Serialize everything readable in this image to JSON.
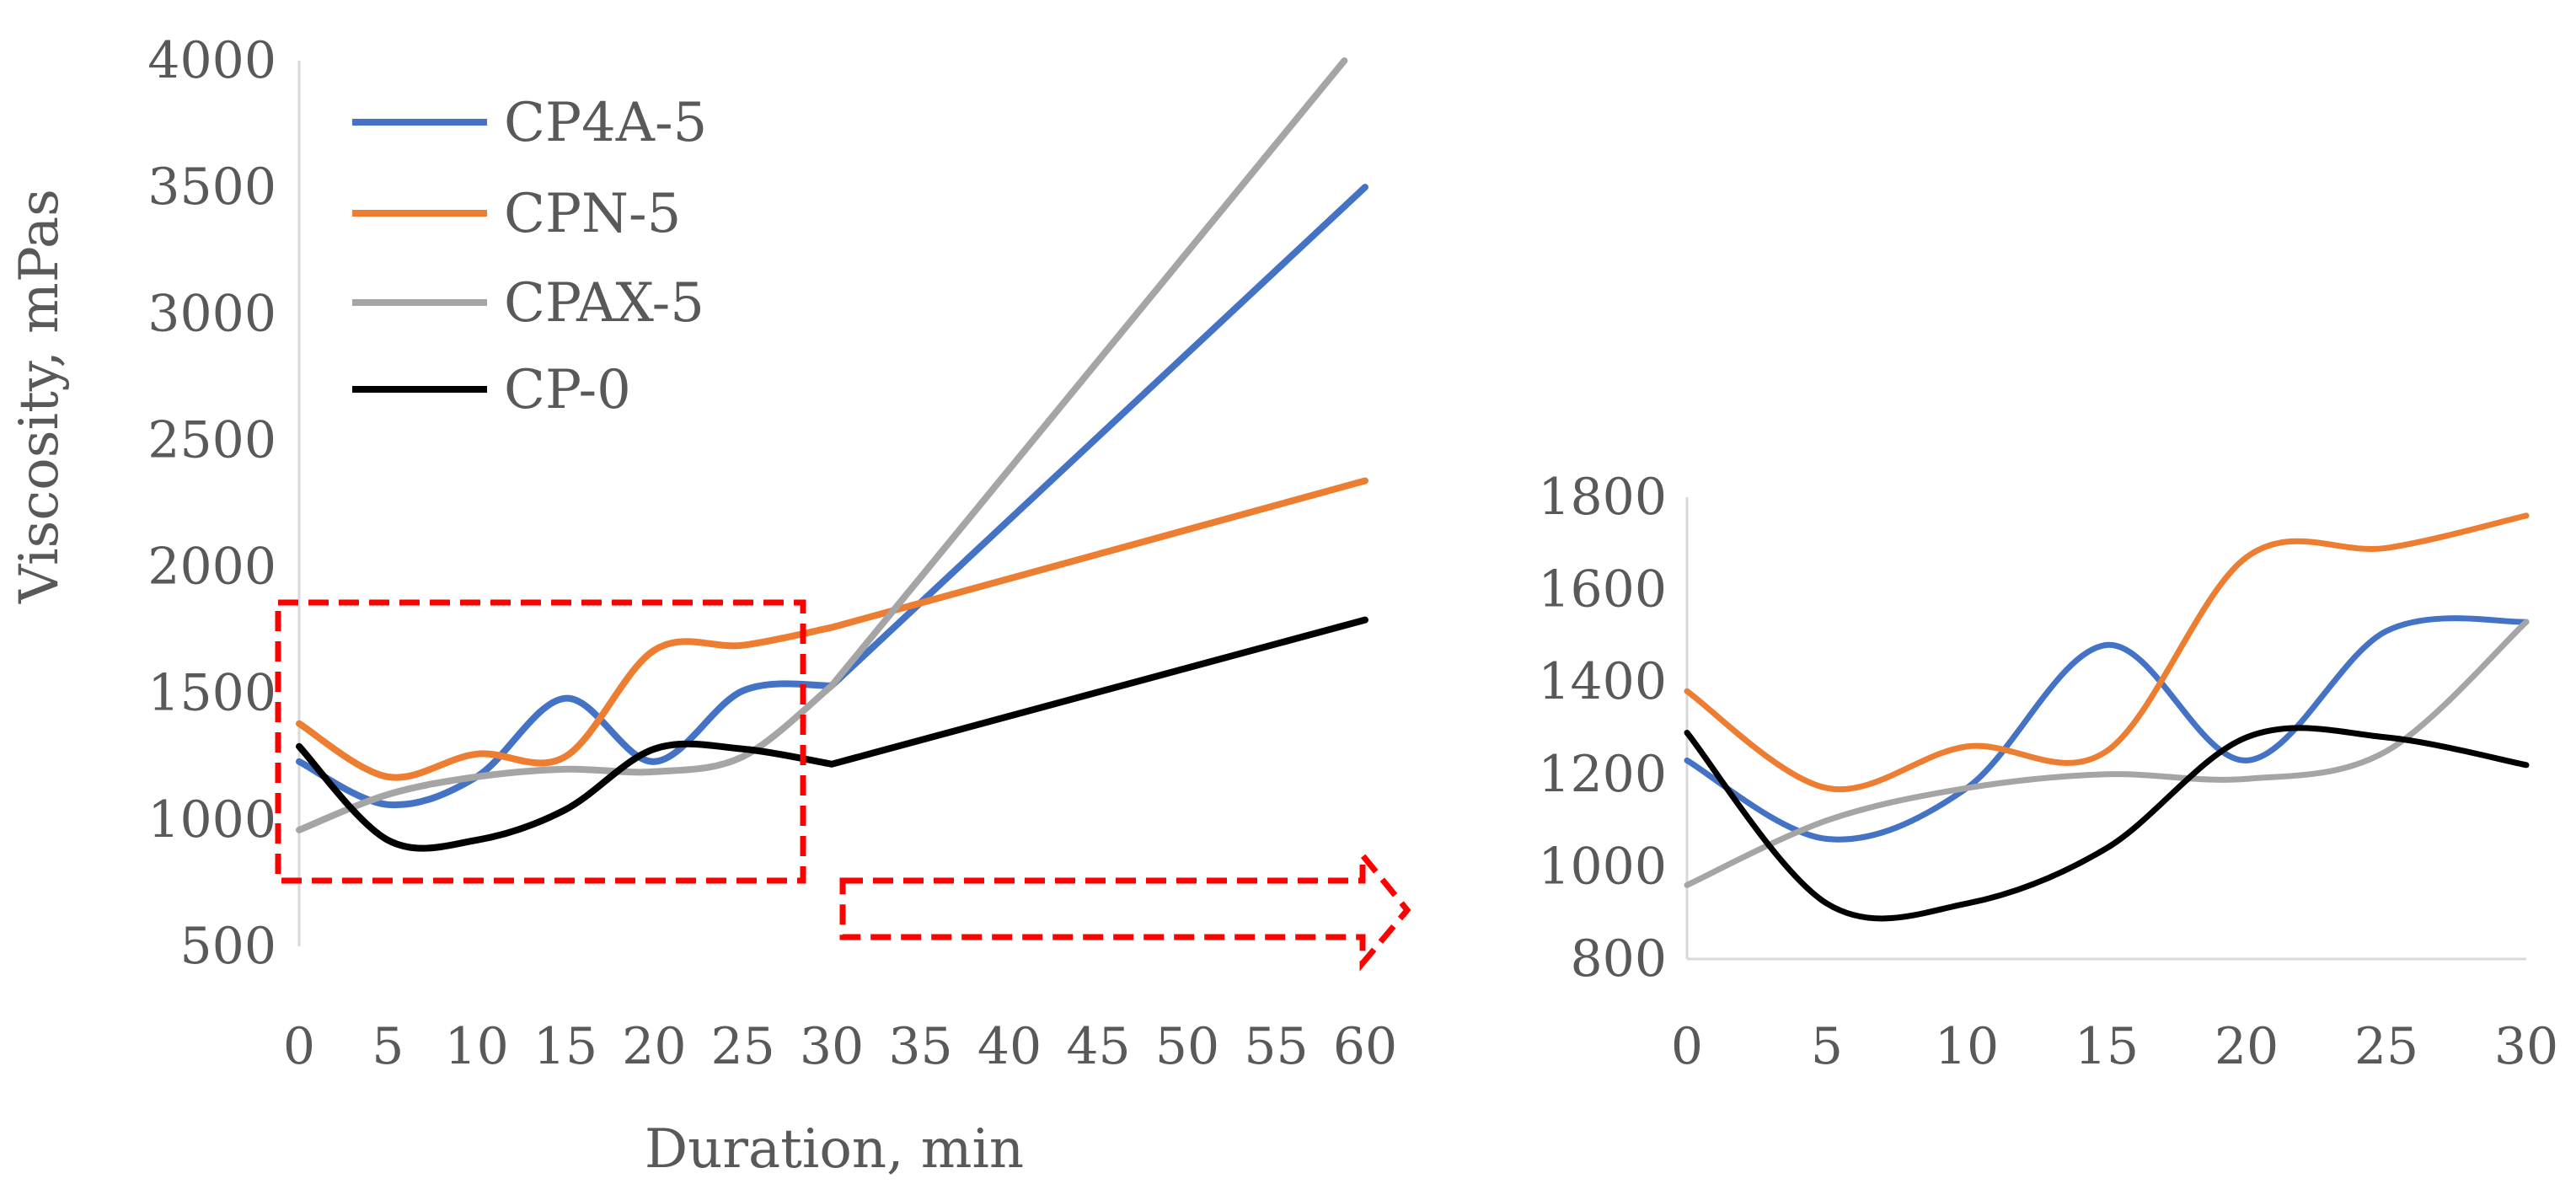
{
  "chart_data": [
    {
      "type": "line",
      "xlabel": "Duration, min",
      "ylabel": "Viscosity, mPas",
      "ylim": [
        500,
        4000
      ],
      "yticks": [
        500,
        1000,
        1500,
        2000,
        2500,
        3000,
        3500,
        4000
      ],
      "x_tick_labels": [
        "0",
        "5",
        "10",
        "15",
        "20",
        "25",
        "30",
        "35",
        "40",
        "45",
        "50",
        "55",
        "60"
      ],
      "grid": false,
      "legend_position": "top-left",
      "annotation": "red dashed box over 0–30 min with dashed arrow pointing to the zoomed inset",
      "series": [
        {
          "name": "CP4A-5",
          "color": "#4472C4",
          "x": [
            0,
            5,
            10,
            15,
            20,
            25,
            30,
            60
          ],
          "y": [
            1230,
            1060,
            1170,
            1480,
            1230,
            1510,
            1530,
            3500
          ]
        },
        {
          "name": "CPN-5",
          "color": "#ED7D31",
          "x": [
            0,
            5,
            10,
            15,
            20,
            25,
            30,
            60
          ],
          "y": [
            1380,
            1170,
            1260,
            1250,
            1670,
            1690,
            1760,
            2340
          ]
        },
        {
          "name": "CPAX-5",
          "color": "#A5A5A5",
          "x": [
            0,
            5,
            10,
            15,
            20,
            25,
            30,
            60
          ],
          "y": [
            960,
            1100,
            1170,
            1200,
            1190,
            1250,
            1530,
            4100
          ]
        },
        {
          "name": "CP-0",
          "color": "#000000",
          "x": [
            0,
            5,
            10,
            15,
            20,
            25,
            30,
            60
          ],
          "y": [
            1290,
            920,
            920,
            1040,
            1280,
            1280,
            1220,
            1790
          ]
        }
      ]
    },
    {
      "type": "line",
      "ylim": [
        800,
        1800
      ],
      "yticks": [
        800,
        1000,
        1200,
        1400,
        1600,
        1800
      ],
      "x_tick_labels": [
        "0",
        "5",
        "10",
        "15",
        "20",
        "25",
        "30"
      ],
      "grid": false,
      "series": [
        {
          "color": "#4472C4",
          "x": [
            0,
            5,
            10,
            15,
            20,
            25,
            30
          ],
          "y": [
            1230,
            1060,
            1170,
            1480,
            1230,
            1510,
            1530
          ]
        },
        {
          "color": "#ED7D31",
          "x": [
            0,
            5,
            10,
            15,
            20,
            25,
            30
          ],
          "y": [
            1380,
            1170,
            1260,
            1250,
            1670,
            1690,
            1760
          ]
        },
        {
          "color": "#A5A5A5",
          "x": [
            0,
            5,
            10,
            15,
            20,
            25,
            30
          ],
          "y": [
            960,
            1100,
            1170,
            1200,
            1190,
            1250,
            1530
          ]
        },
        {
          "color": "#000000",
          "x": [
            0,
            5,
            10,
            15,
            20,
            25,
            30
          ],
          "y": [
            1290,
            920,
            920,
            1040,
            1280,
            1280,
            1220
          ]
        }
      ]
    }
  ]
}
